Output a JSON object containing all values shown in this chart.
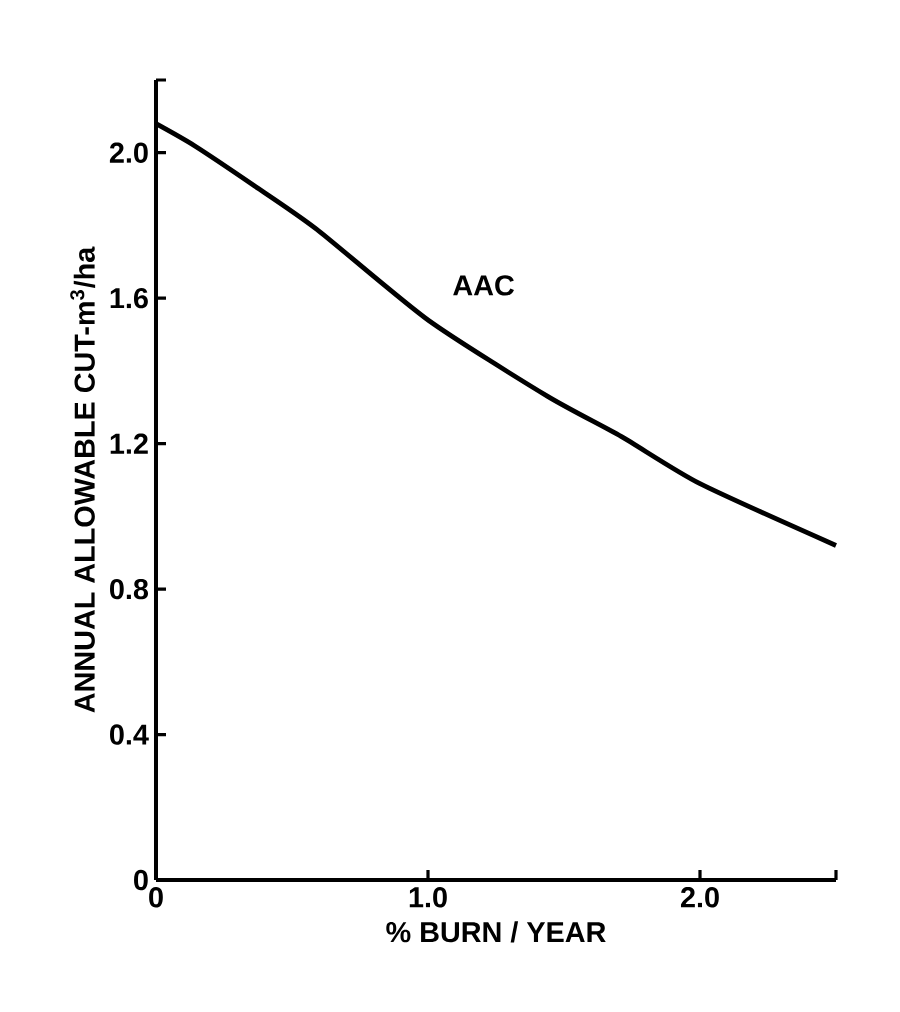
{
  "chart_data": {
    "type": "line",
    "xlabel": "% BURN / YEAR",
    "ylabel": "ANNUAL ALLOWABLE CUT-m$^{3}$/ha",
    "xlim": [
      0,
      2.5
    ],
    "ylim": [
      0,
      2.2
    ],
    "xticks": [
      0,
      {
        "value": 1,
        "label": "1.0"
      },
      {
        "value": 2,
        "label": "2.0"
      },
      {
        "value": 2.5,
        "label": null
      }
    ],
    "yticks": [
      0,
      {
        "value": 0.4,
        "label": "0.4"
      },
      {
        "value": 0.8,
        "label": "0.8"
      },
      {
        "value": 1.2,
        "label": "1.2"
      },
      {
        "value": 1.6,
        "label": "1.6"
      },
      {
        "value": 2,
        "label": "2.0"
      },
      {
        "value": 2.2,
        "label": null
      }
    ],
    "grid": false,
    "legend": false,
    "marker": "none",
    "line_style": "solid",
    "series": [
      {
        "name": "AAC",
        "color": "#000000",
        "x": [
          0,
          0.14,
          0.36,
          0.59,
          1.0,
          1.44,
          1.71,
          2.0,
          2.5
        ],
        "values": [
          2.08,
          2.02,
          1.91,
          1.79,
          1.54,
          1.33,
          1.22,
          1.09,
          0.92
        ]
      }
    ]
  }
}
